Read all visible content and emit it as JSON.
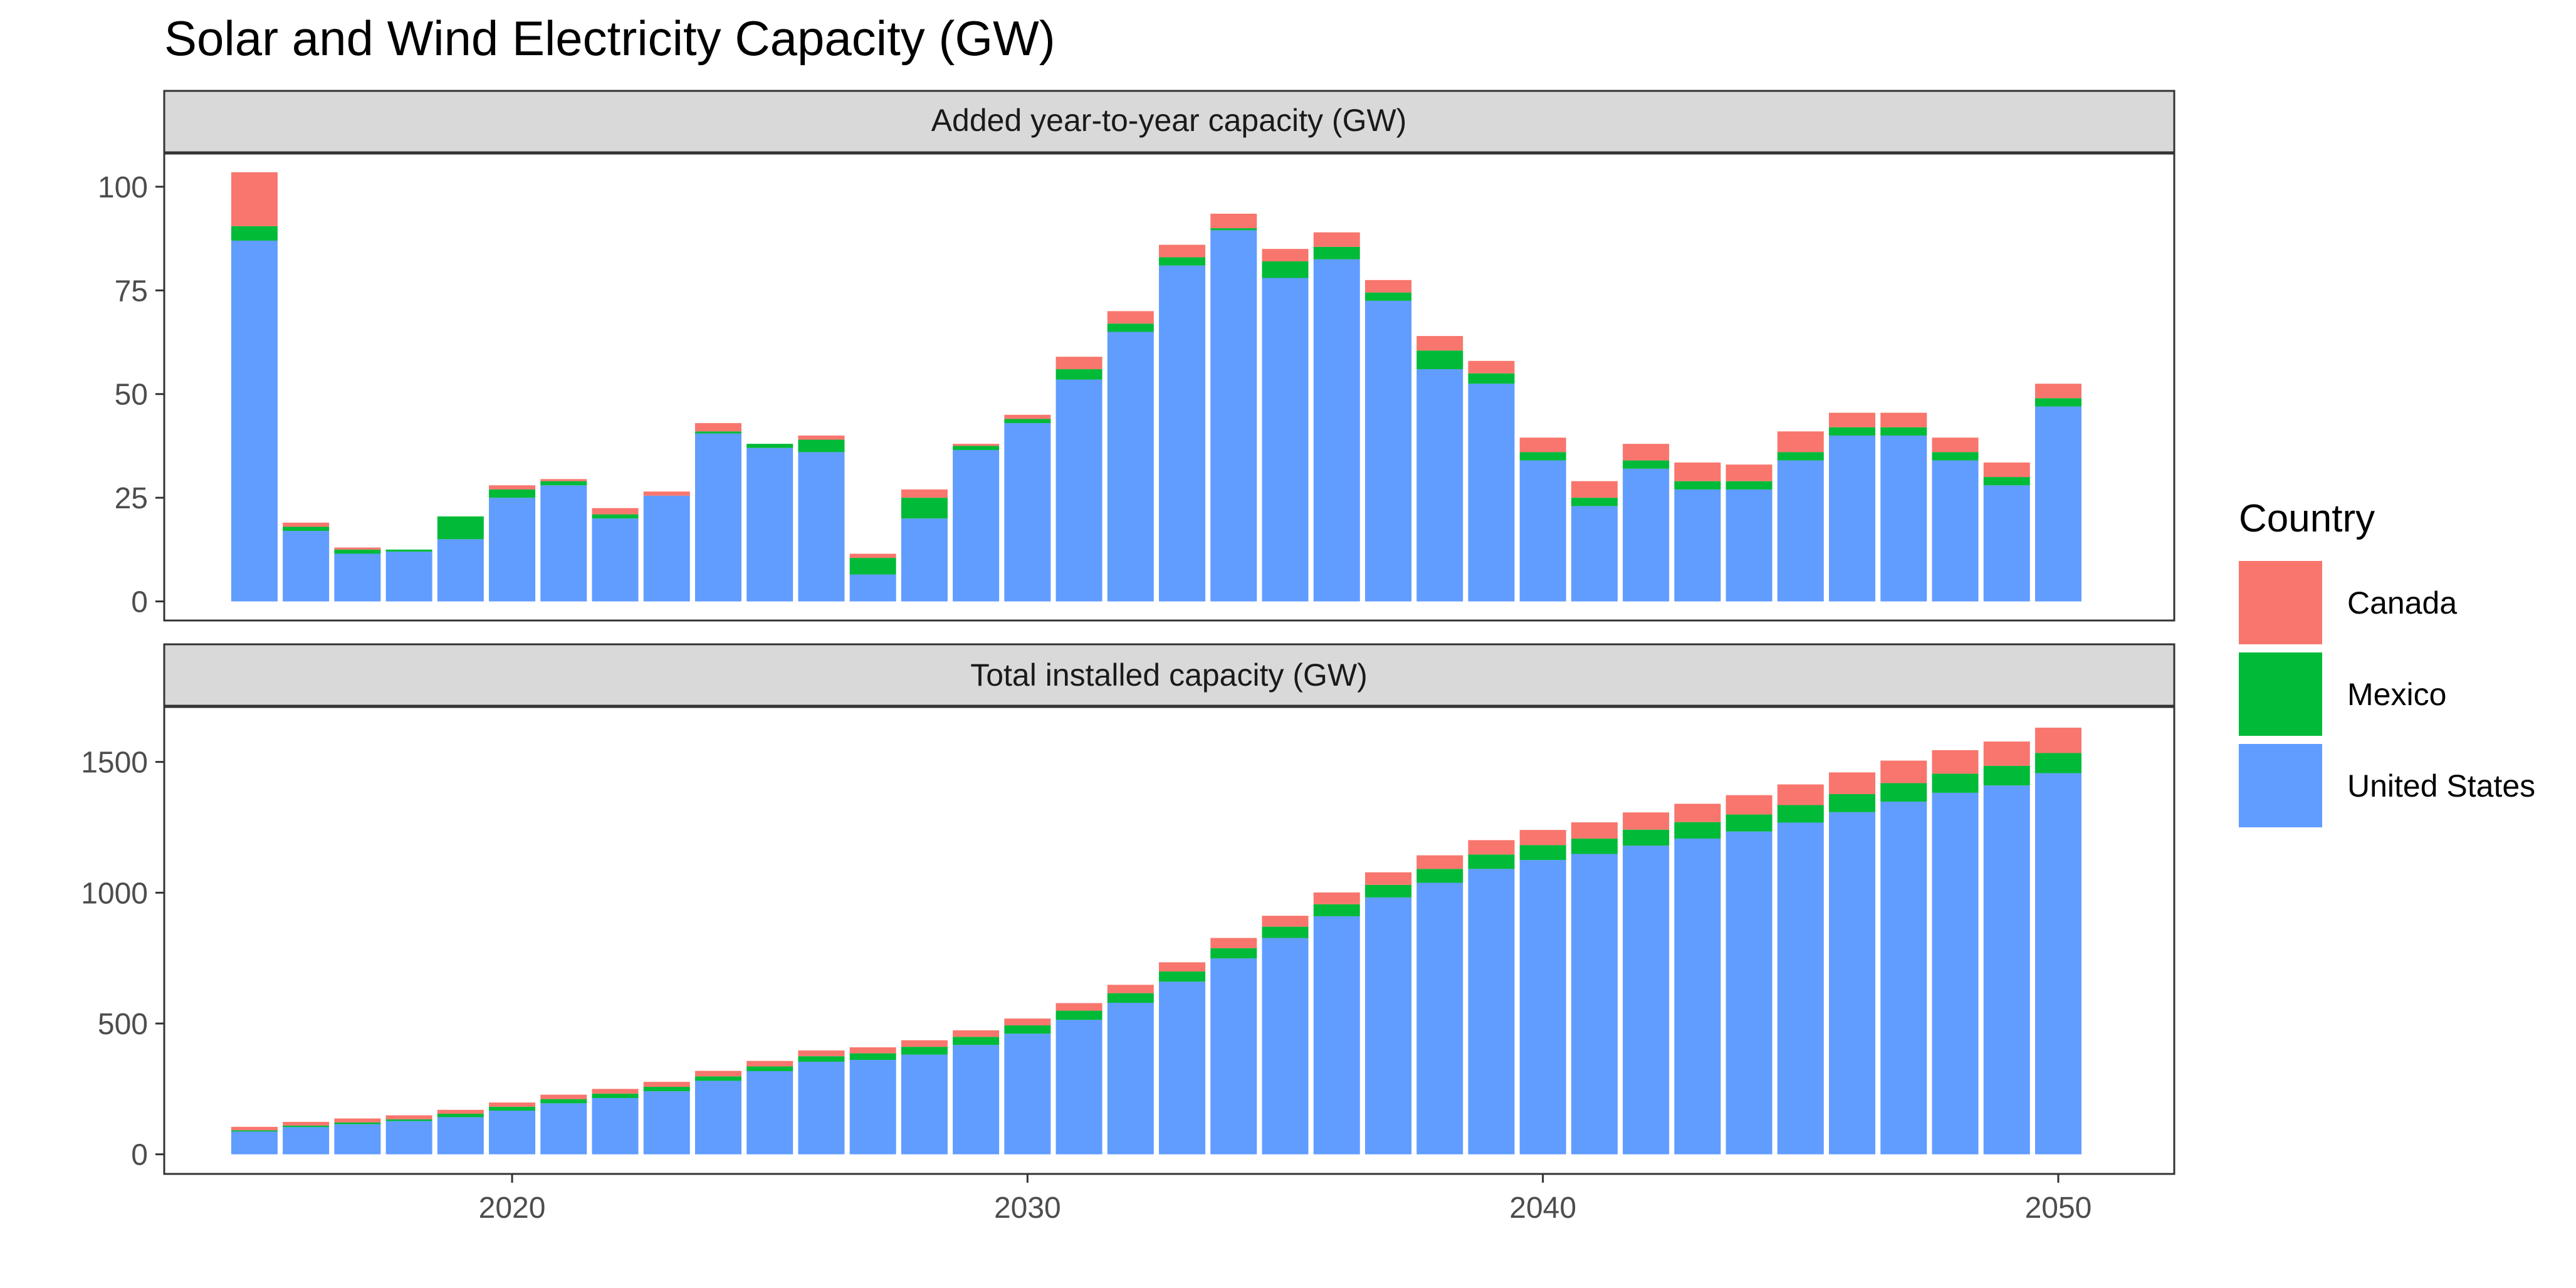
{
  "title": "Solar and Wind Electricity Capacity (GW)",
  "chart_data": {
    "type": "bar",
    "stacked": true,
    "title": "Solar and Wind Electricity Capacity (GW)",
    "xlabel": "",
    "ylabel": "",
    "x_ticks": [
      2020,
      2030,
      2040,
      2050
    ],
    "legend": {
      "title": "Country",
      "position": "right"
    },
    "x": [
      2015,
      2016,
      2017,
      2018,
      2019,
      2020,
      2021,
      2022,
      2023,
      2024,
      2025,
      2026,
      2027,
      2028,
      2029,
      2030,
      2031,
      2032,
      2033,
      2034,
      2035,
      2036,
      2037,
      2038,
      2039,
      2040,
      2041,
      2042,
      2043,
      2044,
      2045,
      2046,
      2047,
      2048,
      2049,
      2050
    ],
    "series_meta": [
      {
        "name": "Canada",
        "color": "#F8766D"
      },
      {
        "name": "Mexico",
        "color": "#00BA38"
      },
      {
        "name": "United States",
        "color": "#619CFF"
      }
    ],
    "panels": [
      {
        "strip": "Added year-to-year capacity (GW)",
        "ylim": [
          -4.6,
          108
        ],
        "y_ticks": [
          0,
          25,
          50,
          75,
          100
        ],
        "series": [
          {
            "name": "United States",
            "values": [
              87,
              17,
              11.5,
              12,
              15,
              25,
              28,
              20,
              25.5,
              40.5,
              37,
              36,
              6.5,
              20,
              36.5,
              43,
              53.5,
              65,
              81,
              89.5,
              78,
              82.5,
              72.5,
              56,
              52.5,
              34,
              23,
              32,
              27,
              27,
              34,
              40,
              40,
              34,
              28,
              47
            ]
          },
          {
            "name": "Mexico",
            "values": [
              3.5,
              1,
              1,
              0.5,
              5.5,
              2,
              1,
              1,
              0,
              0.5,
              1,
              3,
              4,
              5,
              1,
              1,
              2.5,
              2,
              2,
              0.5,
              4,
              3,
              2,
              4.5,
              2.5,
              2,
              2,
              2,
              2,
              2,
              2,
              2,
              2,
              2,
              2,
              2
            ]
          },
          {
            "name": "Canada",
            "values": [
              13,
              1,
              0.5,
              0,
              0,
              1,
              0.5,
              1.5,
              1,
              2,
              0,
              1,
              1,
              2,
              0.5,
              1,
              3,
              3,
              3,
              3.5,
              3,
              3.5,
              3,
              3.5,
              3,
              3.5,
              4,
              4,
              4.5,
              4,
              5,
              3.5,
              3.5,
              3.5,
              3.5,
              3.5
            ]
          }
        ]
      },
      {
        "strip": "Total installed capacity (GW)",
        "ylim": [
          -75,
          1710
        ],
        "y_ticks": [
          0,
          500,
          1000,
          1500
        ],
        "series": [
          {
            "name": "United States",
            "values": [
              87,
              104,
              115,
              127,
              142,
              167,
              195,
              215,
              241,
              281,
              318,
              354,
              361,
              381,
              418,
              461,
              514,
              579,
              660,
              749,
              827,
              910,
              982,
              1038,
              1091,
              1125,
              1148,
              1180,
              1207,
              1234,
              1268,
              1308,
              1348,
              1382,
              1410,
              1457
            ]
          },
          {
            "name": "Mexico",
            "values": [
              5,
              6,
              7,
              7,
              13,
              15,
              16,
              17,
              17,
              17,
              18,
              21,
              25,
              30,
              31,
              32,
              35,
              37,
              39,
              39,
              43,
              46,
              48,
              53,
              55,
              57,
              59,
              61,
              63,
              65,
              67,
              69,
              71,
              73,
              75,
              77
            ]
          },
          {
            "name": "Canada",
            "values": [
              13,
              14,
              15,
              15,
              15,
              16,
              17,
              18,
              19,
              21,
              21,
              22,
              23,
              25,
              25,
              26,
              29,
              32,
              35,
              39,
              42,
              45,
              48,
              52,
              55,
              58,
              62,
              66,
              70,
              74,
              79,
              83,
              86,
              90,
              93,
              97
            ]
          }
        ]
      }
    ]
  }
}
